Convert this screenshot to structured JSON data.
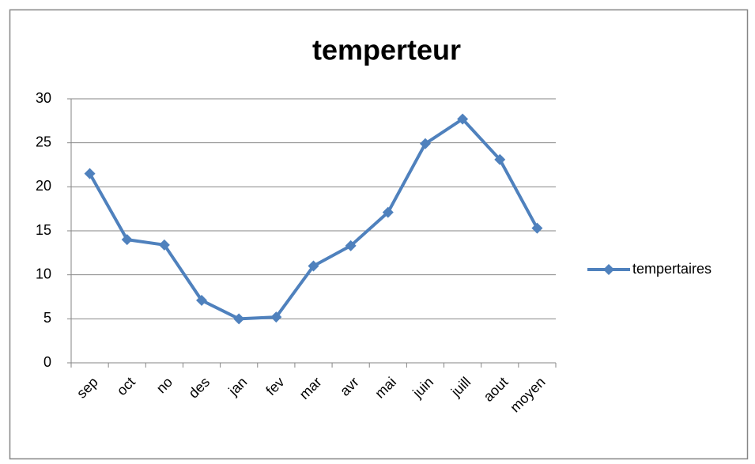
{
  "chart_data": {
    "type": "line",
    "title": "temperteur",
    "categories": [
      "sep",
      "oct",
      "no",
      "des",
      "jan",
      "fev",
      "mar",
      "avr",
      "mai",
      "juin",
      "juill",
      "aout",
      "moyen"
    ],
    "series": [
      {
        "name": "tempertaires",
        "color": "#4f81bd",
        "values": [
          21.5,
          14.0,
          13.4,
          7.1,
          5.0,
          5.2,
          11.0,
          13.3,
          17.1,
          24.9,
          27.7,
          23.1,
          15.3
        ]
      }
    ],
    "ylim": [
      0,
      30
    ],
    "yticks": [
      0,
      5,
      10,
      15,
      20,
      25,
      30
    ],
    "grid": true,
    "legend": "right"
  }
}
